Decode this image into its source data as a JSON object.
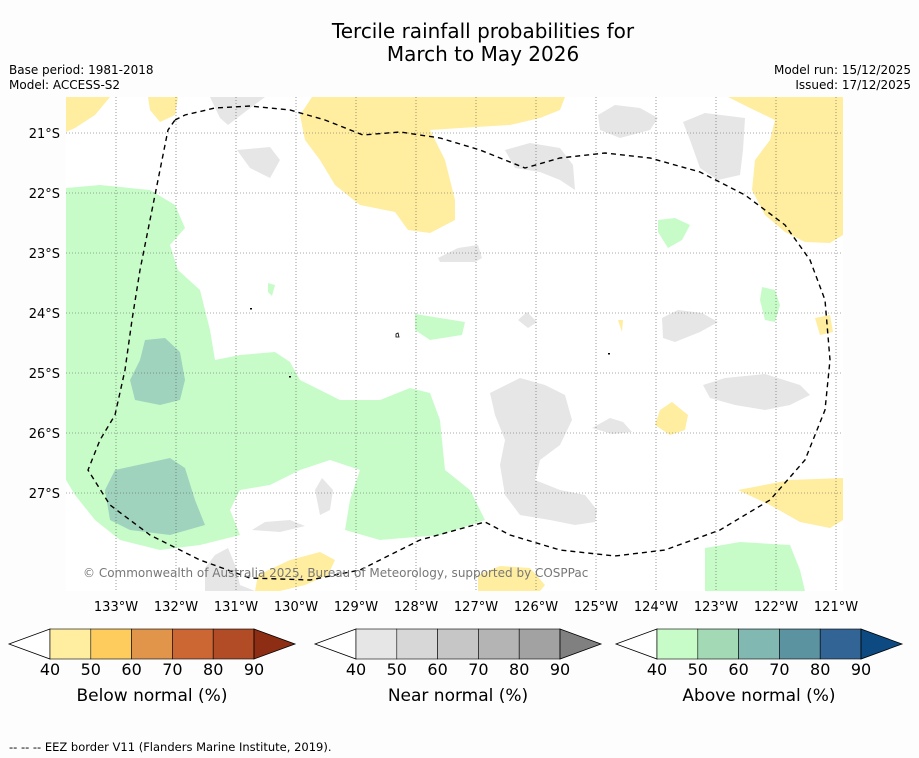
{
  "title": {
    "line1": "Tercile rainfall probabilities for",
    "line2": "March to May 2026"
  },
  "meta": {
    "base_period": "Base period: 1981-2018",
    "model": "Model: ACCESS-S2",
    "model_run": "Model run: 15/12/2025",
    "issued": "Issued: 17/12/2025"
  },
  "map": {
    "lat_labels": [
      "21°S",
      "22°S",
      "23°S",
      "24°S",
      "25°S",
      "26°S",
      "27°S"
    ],
    "lon_labels": [
      "133°W",
      "132°W",
      "131°W",
      "130°W",
      "129°W",
      "128°W",
      "127°W",
      "126°W",
      "125°W",
      "124°W",
      "123°W",
      "122°W",
      "121°W"
    ],
    "copyright": "© Commonwealth of Australia 2025, Bureau of Meteorology, supported by COSPPac"
  },
  "colorbars": [
    {
      "label": "Below normal (%)",
      "ticks": [
        "40",
        "50",
        "60",
        "70",
        "80",
        "90"
      ],
      "colors": [
        "#ffeda0",
        "#fecc5c",
        "#e0954a",
        "#cc6633",
        "#b24c26",
        "#8c2d14"
      ]
    },
    {
      "label": "Near normal (%)",
      "ticks": [
        "40",
        "50",
        "60",
        "70",
        "80",
        "90"
      ],
      "colors": [
        "#e6e6e6",
        "#d7d7d7",
        "#c6c6c6",
        "#b4b4b4",
        "#a2a2a2",
        "#808080"
      ]
    },
    {
      "label": "Above normal (%)",
      "ticks": [
        "40",
        "50",
        "60",
        "70",
        "80",
        "90"
      ],
      "colors": [
        "#c7fcc9",
        "#a3d9b5",
        "#82b8b2",
        "#5b93a0",
        "#326596",
        "#0d4a82"
      ]
    }
  ],
  "colors": {
    "below": "#ffeda0",
    "near": "#e6e6e6",
    "above": "#c7fcc9",
    "above_60": "#9fd3bd"
  },
  "footer": "--  --  -- EEZ border V11 (Flanders Marine Institute, 2019)."
}
